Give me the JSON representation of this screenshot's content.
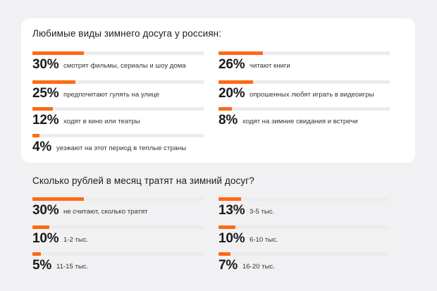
{
  "chart_data": [
    {
      "type": "bar",
      "title": "Любимые виды зимнего досуга у россиян:",
      "items": [
        {
          "value": "30%",
          "pct": 30,
          "label": "смотрят фильмы, сериалы и шоу дома"
        },
        {
          "value": "26%",
          "pct": 26,
          "label": "читают книги"
        },
        {
          "value": "25%",
          "pct": 25,
          "label": "предпочитают гулять на улице"
        },
        {
          "value": "20%",
          "pct": 20,
          "label": "опрошенных любят играть в видеоигры"
        },
        {
          "value": "12%",
          "pct": 12,
          "label": "ходят в кино или театры"
        },
        {
          "value": "8%",
          "pct": 8,
          "label": "ходят на зимние свидания и встречи"
        },
        {
          "value": "4%",
          "pct": 4,
          "label": "уезжают на этот период в теплые страны"
        }
      ]
    },
    {
      "type": "bar",
      "title": "Сколько рублей в месяц тратят на зимний досуг?",
      "items": [
        {
          "value": "30%",
          "pct": 30,
          "label": "не считают, сколько тратят"
        },
        {
          "value": "13%",
          "pct": 13,
          "label": "3-5 тыс."
        },
        {
          "value": "10%",
          "pct": 10,
          "label": "1-2 тыс."
        },
        {
          "value": "10%",
          "pct": 10,
          "label": "6-10 тыс."
        },
        {
          "value": "5%",
          "pct": 5,
          "label": "11-15 тыс."
        },
        {
          "value": "7%",
          "pct": 7,
          "label": "16-20 тыс."
        }
      ]
    }
  ],
  "colors": {
    "accent": "#ff6a13",
    "track": "#ececec",
    "card": "#ffffff",
    "background": "#f1f1f3"
  }
}
